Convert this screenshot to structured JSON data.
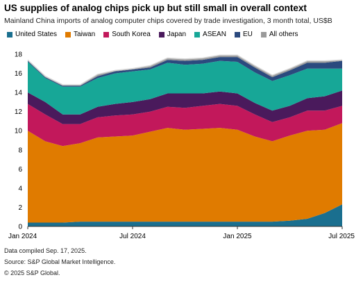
{
  "title": "US supplies of analog chips pick up but still small in overall context",
  "subtitle": "Mainland China imports of analog computer chips covered by trade investigation, 3 month total, US$B",
  "footnotes": [
    "Data compiled Sep. 17, 2025.",
    "Source: S&P Global Market Intelligence.",
    "© 2025 S&P Global."
  ],
  "chart_data": {
    "type": "area",
    "stacked": true,
    "x": [
      "2024-01",
      "2024-02",
      "2024-03",
      "2024-04",
      "2024-05",
      "2024-06",
      "2024-07",
      "2024-08",
      "2024-09",
      "2024-10",
      "2024-11",
      "2024-12",
      "2025-01",
      "2025-02",
      "2025-03",
      "2025-04",
      "2025-05",
      "2025-06",
      "2025-07"
    ],
    "x_tick_labels": [
      {
        "index": 0,
        "label": "Jan 2024"
      },
      {
        "index": 6,
        "label": "Jul 2024"
      },
      {
        "index": 12,
        "label": "Jan 2025"
      },
      {
        "index": 18,
        "label": "Jul 2025"
      }
    ],
    "ylim": [
      0,
      18
    ],
    "yticks": [
      0,
      2,
      4,
      6,
      8,
      10,
      12,
      14,
      16,
      18
    ],
    "grid": false,
    "legend_position": "top",
    "series": [
      {
        "name": "United States",
        "color": "#1a6f8f",
        "values": [
          0.4,
          0.4,
          0.4,
          0.5,
          0.5,
          0.5,
          0.5,
          0.5,
          0.5,
          0.5,
          0.5,
          0.5,
          0.5,
          0.5,
          0.5,
          0.6,
          0.8,
          1.4,
          2.3
        ]
      },
      {
        "name": "Taiwan",
        "color": "#e07b00",
        "values": [
          9.6,
          8.5,
          8.0,
          8.2,
          8.8,
          8.9,
          9.0,
          9.4,
          9.8,
          9.6,
          9.7,
          9.8,
          9.6,
          8.9,
          8.4,
          8.9,
          9.2,
          8.7,
          8.5
        ]
      },
      {
        "name": "South Korea",
        "color": "#c2185b",
        "values": [
          2.8,
          2.8,
          2.3,
          2.0,
          2.1,
          2.2,
          2.2,
          2.1,
          2.2,
          2.3,
          2.4,
          2.5,
          2.5,
          2.3,
          2.0,
          1.9,
          2.1,
          2.0,
          1.8
        ]
      },
      {
        "name": "Japan",
        "color": "#4a1a5c",
        "values": [
          1.2,
          1.3,
          1.0,
          1.0,
          1.1,
          1.2,
          1.3,
          1.3,
          1.4,
          1.5,
          1.3,
          1.3,
          1.3,
          1.2,
          1.2,
          1.2,
          1.3,
          1.5,
          1.6
        ]
      },
      {
        "name": "ASEAN",
        "color": "#17a797",
        "values": [
          3.2,
          2.5,
          2.9,
          2.9,
          3.0,
          3.2,
          3.2,
          3.1,
          3.2,
          3.0,
          3.1,
          3.2,
          3.3,
          3.2,
          3.1,
          3.2,
          3.1,
          2.9,
          2.3
        ]
      },
      {
        "name": "EU",
        "color": "#2b4a7e",
        "values": [
          0.1,
          0.1,
          0.1,
          0.1,
          0.2,
          0.2,
          0.2,
          0.2,
          0.3,
          0.4,
          0.4,
          0.4,
          0.5,
          0.5,
          0.4,
          0.5,
          0.6,
          0.6,
          0.8
        ]
      },
      {
        "name": "All others",
        "color": "#9a9a9a",
        "values": [
          0.1,
          0.1,
          0.1,
          0.1,
          0.2,
          0.1,
          0.1,
          0.2,
          0.2,
          0.2,
          0.2,
          0.2,
          0.2,
          0.2,
          0.2,
          0.2,
          0.2,
          0.2,
          0.1
        ]
      }
    ]
  }
}
